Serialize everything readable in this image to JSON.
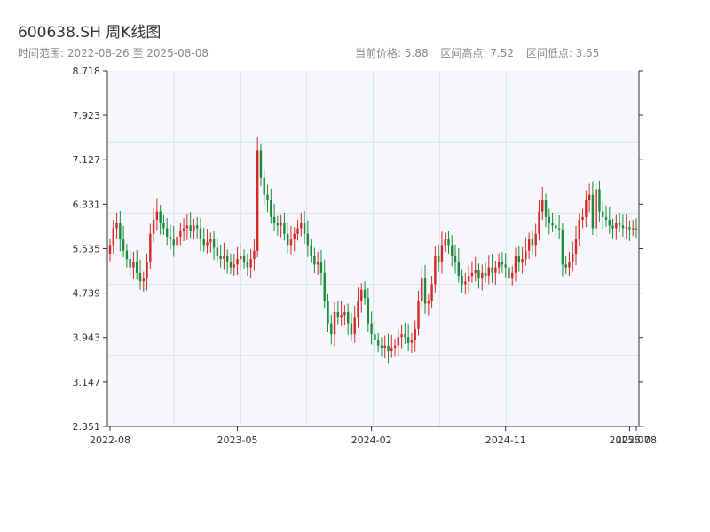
{
  "header": {
    "title": "600638.SH 周K线图",
    "subtitle": "时间范围: 2022-08-26 至 2025-08-08",
    "current_price": "当前价格: 5.88",
    "interval_high": "区间高点: 7.52",
    "interval_low": "区间低点: 3.55"
  },
  "colors": {
    "up": "#d62728",
    "down": "#1a8a3c",
    "plot_bg": "#f5f7fa",
    "grid": "#dde3ea",
    "axis": "#333333"
  },
  "chart_data": {
    "type": "candlestick",
    "title": "600638.SH 周K线图",
    "ylim": [
      2.351,
      8.718
    ],
    "y_ticks": [
      "2.351",
      "3.147",
      "3.943",
      "4.739",
      "5.535",
      "6.331",
      "7.127",
      "7.923",
      "8.718"
    ],
    "x_ticks": [
      "2022-08",
      "2023-05",
      "2024-02",
      "2024-11",
      "2025-07",
      "2025-08"
    ],
    "x_tick_index": [
      0,
      38,
      78,
      118,
      155,
      157
    ],
    "grid": true,
    "week_count": 158,
    "close": [
      5.6,
      5.9,
      6.0,
      5.7,
      5.5,
      5.35,
      5.2,
      5.3,
      5.1,
      4.95,
      5.0,
      5.3,
      5.8,
      6.05,
      6.2,
      6.0,
      5.9,
      5.75,
      5.7,
      5.6,
      5.75,
      5.85,
      5.9,
      5.95,
      5.85,
      5.95,
      5.9,
      5.7,
      5.6,
      5.65,
      5.7,
      5.55,
      5.4,
      5.35,
      5.4,
      5.3,
      5.2,
      5.25,
      5.35,
      5.4,
      5.3,
      5.2,
      5.35,
      5.5,
      7.3,
      6.8,
      6.5,
      6.4,
      6.1,
      6.0,
      5.95,
      6.0,
      5.8,
      5.6,
      5.7,
      5.8,
      5.9,
      6.0,
      5.8,
      5.6,
      5.4,
      5.25,
      5.3,
      5.1,
      4.6,
      4.2,
      4.0,
      4.4,
      4.3,
      4.35,
      4.4,
      4.2,
      4.0,
      4.3,
      4.6,
      4.8,
      4.65,
      4.2,
      4.0,
      3.9,
      3.8,
      3.75,
      3.8,
      3.7,
      3.75,
      3.8,
      3.95,
      4.0,
      3.95,
      3.85,
      3.9,
      4.1,
      4.6,
      5.0,
      4.55,
      4.6,
      4.9,
      5.4,
      5.3,
      5.6,
      5.7,
      5.6,
      5.4,
      5.3,
      5.05,
      4.9,
      4.95,
      5.05,
      5.1,
      5.15,
      5.0,
      5.1,
      5.05,
      5.2,
      5.1,
      5.2,
      5.3,
      5.25,
      5.2,
      5.0,
      5.1,
      5.4,
      5.3,
      5.35,
      5.5,
      5.7,
      5.6,
      5.8,
      6.2,
      6.4,
      6.1,
      6.0,
      5.95,
      5.9,
      5.88,
      5.25,
      5.2,
      5.3,
      5.45,
      5.7,
      6.05,
      6.1,
      6.4,
      6.5,
      5.9,
      6.6,
      6.2,
      6.1,
      6.05,
      5.95,
      5.9,
      6.0,
      5.95,
      5.9,
      5.92,
      5.88,
      5.9,
      5.88
    ],
    "high": 7.52,
    "low": 3.55,
    "last": 5.88
  }
}
